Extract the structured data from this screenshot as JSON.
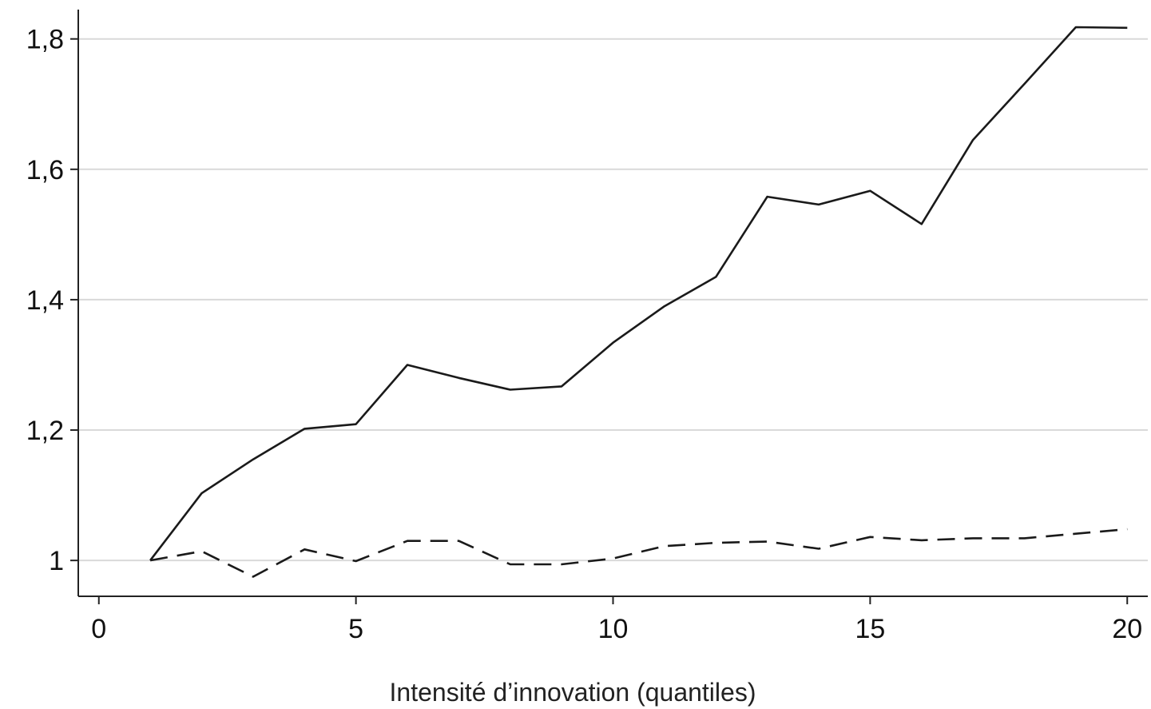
{
  "chart_data": {
    "type": "line",
    "title": "",
    "xlabel": "Intensité d’innovation (quantiles)",
    "ylabel": "",
    "xlim": [
      -0.4,
      20.4
    ],
    "ylim": [
      0.945,
      1.845
    ],
    "x_ticks": [
      0,
      5,
      10,
      15,
      20
    ],
    "x_tick_labels": [
      "0",
      "5",
      "10",
      "15",
      "20"
    ],
    "y_ticks": [
      1.0,
      1.2,
      1.4,
      1.6,
      1.8
    ],
    "y_tick_labels": [
      "1",
      "1,2",
      "1,4",
      "1,6",
      "1,8"
    ],
    "grid": "horizontal",
    "legend": "none",
    "x": [
      1,
      2,
      3,
      4,
      5,
      6,
      7,
      8,
      9,
      10,
      11,
      12,
      13,
      14,
      15,
      16,
      17,
      18,
      19,
      20
    ],
    "series": [
      {
        "style": "solid",
        "color": "#1a1a1a",
        "values": [
          1.0,
          1.103,
          1.155,
          1.202,
          1.209,
          1.3,
          1.28,
          1.262,
          1.267,
          1.334,
          1.39,
          1.435,
          1.558,
          1.546,
          1.567,
          1.516,
          1.645,
          1.731,
          1.818,
          1.817
        ]
      },
      {
        "style": "dashed",
        "color": "#1a1a1a",
        "values": [
          1.0,
          1.014,
          0.975,
          1.017,
          0.999,
          1.03,
          1.03,
          0.994,
          0.994,
          1.003,
          1.022,
          1.027,
          1.029,
          1.018,
          1.036,
          1.031,
          1.034,
          1.034,
          1.041,
          1.048
        ]
      }
    ]
  }
}
